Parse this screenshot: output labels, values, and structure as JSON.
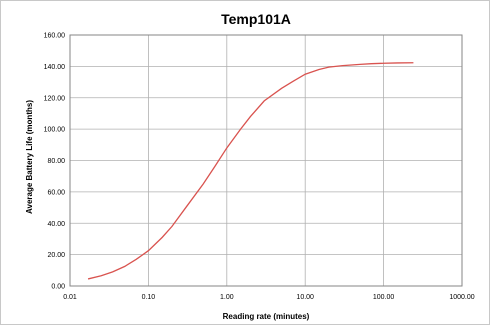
{
  "chart_data": {
    "type": "line",
    "title": "Temp101A",
    "xlabel": "Reading rate (minutes)",
    "ylabel": "Average Battery Life (months)",
    "x_scale": "log",
    "xlim": [
      0.01,
      1000
    ],
    "ylim": [
      0,
      160
    ],
    "x_ticks": [
      "0.01",
      "0.10",
      "1.00",
      "10.00",
      "100.00",
      "1000.00"
    ],
    "y_ticks": [
      "0.00",
      "20.00",
      "40.00",
      "60.00",
      "80.00",
      "100.00",
      "120.00",
      "140.00",
      "160.00"
    ],
    "grid": true,
    "legend": "none",
    "series_color": "#d9534f",
    "series": [
      {
        "x": [
          0.017,
          0.025,
          0.035,
          0.05,
          0.07,
          0.1,
          0.15,
          0.2,
          0.3,
          0.5,
          0.7,
          1.0,
          1.5,
          2.0,
          3.0,
          5.0,
          7.0,
          10.0,
          15.0,
          20.0,
          30.0,
          50.0,
          70.0,
          100.0,
          150.0,
          240.0
        ],
        "y": [
          4.5,
          6.5,
          9,
          12.5,
          17,
          22.5,
          31,
          38,
          50,
          65,
          76,
          88,
          100,
          108,
          118,
          126,
          130.5,
          135,
          138,
          139.5,
          140.5,
          141.3,
          141.7,
          142,
          142.2,
          142.3
        ]
      }
    ]
  }
}
